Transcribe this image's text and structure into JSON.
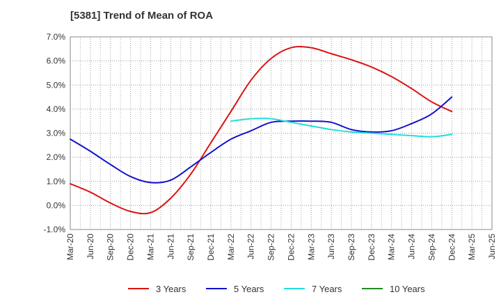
{
  "chart_data": {
    "type": "line",
    "title": "[5381]  Trend of Mean of ROA",
    "xlabel": "",
    "ylabel": "",
    "ylim": [
      -1.0,
      7.0
    ],
    "yticks": [
      "-1.0%",
      "0.0%",
      "1.0%",
      "2.0%",
      "3.0%",
      "4.0%",
      "5.0%",
      "6.0%",
      "7.0%"
    ],
    "categories": [
      "Mar-20",
      "Jun-20",
      "Sep-20",
      "Dec-20",
      "Mar-21",
      "Jun-21",
      "Sep-21",
      "Dec-21",
      "Mar-22",
      "Jun-22",
      "Sep-22",
      "Dec-22",
      "Mar-23",
      "Jun-23",
      "Sep-23",
      "Dec-23",
      "Mar-24",
      "Jun-24",
      "Sep-24",
      "Dec-24",
      "Mar-25",
      "Jun-25"
    ],
    "grid": true,
    "legend_position": "bottom",
    "series": [
      {
        "name": "3 Years",
        "color": "#dd1111",
        "values": [
          0.9,
          0.55,
          0.1,
          -0.25,
          -0.3,
          0.3,
          1.3,
          2.6,
          3.9,
          5.2,
          6.1,
          6.55,
          6.55,
          6.3,
          6.05,
          5.75,
          5.35,
          4.85,
          4.3,
          3.9,
          null,
          null
        ]
      },
      {
        "name": "5 Years",
        "color": "#1111cc",
        "values": [
          2.75,
          2.25,
          1.7,
          1.2,
          0.95,
          1.05,
          1.6,
          2.2,
          2.75,
          3.1,
          3.45,
          3.5,
          3.5,
          3.45,
          3.15,
          3.05,
          3.1,
          3.4,
          3.8,
          4.5,
          null,
          null
        ]
      },
      {
        "name": "7 Years",
        "color": "#22dddd",
        "values": [
          null,
          null,
          null,
          null,
          null,
          null,
          null,
          null,
          3.5,
          3.6,
          3.6,
          3.45,
          3.3,
          3.15,
          3.05,
          3.0,
          2.95,
          2.9,
          2.85,
          2.95,
          null,
          null
        ]
      },
      {
        "name": "10 Years",
        "color": "#228822",
        "values": [
          null,
          null,
          null,
          null,
          null,
          null,
          null,
          null,
          null,
          null,
          null,
          null,
          null,
          null,
          null,
          null,
          null,
          null,
          null,
          null,
          null,
          null
        ]
      }
    ]
  }
}
